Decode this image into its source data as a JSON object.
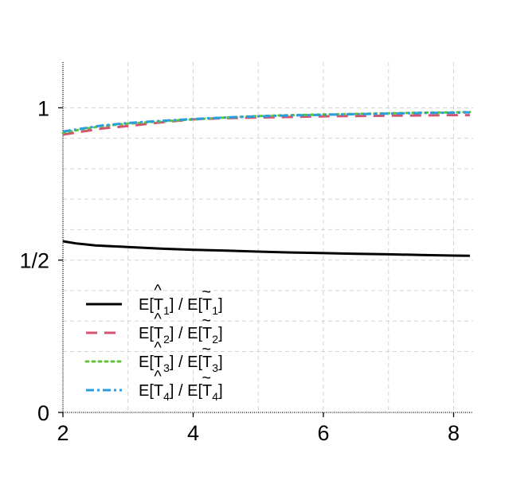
{
  "chart_data": {
    "type": "line",
    "title": "",
    "xlabel": "",
    "ylabel": "",
    "xlim": [
      2,
      8.3
    ],
    "ylim": [
      0,
      1.15
    ],
    "x_ticks": [
      2,
      4,
      6,
      8
    ],
    "x_tick_labels": [
      "2",
      "4",
      "6",
      "8"
    ],
    "y_ticks": [
      0,
      0.5,
      1
    ],
    "y_tick_labels": [
      "0",
      "1/2",
      "1"
    ],
    "grid": true,
    "legend_position": "bottom-left",
    "series": [
      {
        "name": "E[T̂1] / E[T̃1]",
        "label_base": "E[T",
        "label_mid": "] / E[T",
        "label_end": "]",
        "label_sub": "1",
        "color": "#000000",
        "dash": "solid",
        "x": [
          2,
          2.2,
          2.5,
          3,
          3.5,
          4,
          4.5,
          5,
          5.5,
          6,
          6.5,
          7,
          7.5,
          8,
          8.25
        ],
        "y": [
          0.562,
          0.555,
          0.548,
          0.543,
          0.538,
          0.534,
          0.531,
          0.528,
          0.525,
          0.523,
          0.521,
          0.519,
          0.517,
          0.515,
          0.514
        ]
      },
      {
        "name": "E[T̂2] / E[T̃2]",
        "label_base": "E[T",
        "label_mid": "] / E[T",
        "label_end": "]",
        "label_sub": "2",
        "color": "#d4536f",
        "dash": "dashed",
        "x": [
          2,
          2.3,
          2.6,
          3,
          3.5,
          4,
          4.5,
          5,
          5.5,
          6,
          6.5,
          7,
          7.5,
          8,
          8.25
        ],
        "y": [
          0.912,
          0.922,
          0.932,
          0.94,
          0.952,
          0.962,
          0.966,
          0.968,
          0.97,
          0.972,
          0.973,
          0.974,
          0.975,
          0.976,
          0.976
        ]
      },
      {
        "name": "E[T̂3] / E[T̃3]",
        "label_base": "E[T",
        "label_mid": "] / E[T",
        "label_end": "]",
        "label_sub": "3",
        "color": "#61c33a",
        "dash": "dotted",
        "x": [
          2,
          2.3,
          2.6,
          3,
          3.5,
          4,
          4.5,
          5,
          5.5,
          6,
          6.5,
          7,
          7.5,
          8,
          8.25
        ],
        "y": [
          0.918,
          0.93,
          0.94,
          0.948,
          0.955,
          0.962,
          0.968,
          0.973,
          0.976,
          0.978,
          0.98,
          0.982,
          0.984,
          0.985,
          0.986
        ]
      },
      {
        "name": "E[T̂4] / E[T̃4]",
        "label_base": "E[T",
        "label_mid": "] / E[T",
        "label_end": "]",
        "label_sub": "4",
        "color": "#2a9fe0",
        "dash": "dashdot",
        "x": [
          2,
          2.3,
          2.6,
          3,
          3.5,
          4,
          4.5,
          5,
          5.5,
          6,
          6.5,
          7,
          7.5,
          8,
          8.25
        ],
        "y": [
          0.922,
          0.932,
          0.942,
          0.95,
          0.957,
          0.963,
          0.968,
          0.972,
          0.975,
          0.977,
          0.979,
          0.981,
          0.983,
          0.984,
          0.985
        ]
      }
    ]
  }
}
